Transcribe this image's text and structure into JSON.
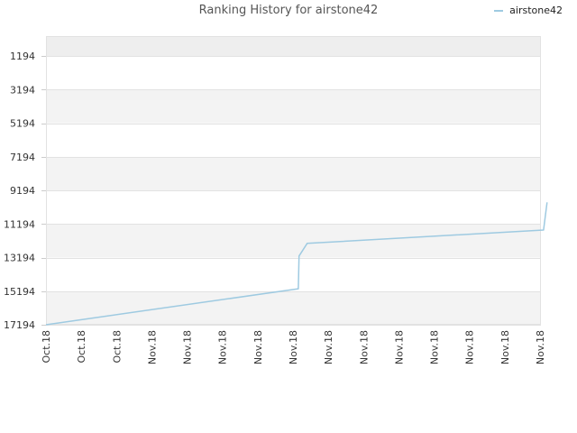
{
  "chart_data": {
    "type": "line",
    "title": "Ranking History for airstone42",
    "legend_position": "top-right",
    "grid": true,
    "y_inverted": true,
    "ylim": [
      17194,
      0
    ],
    "y_ticks": [
      1194,
      3194,
      5194,
      7194,
      9194,
      11194,
      13194,
      15194,
      17194
    ],
    "x_ticks": [
      "Oct.18",
      "Oct.18",
      "Oct.18",
      "Nov.18",
      "Nov.18",
      "Nov.18",
      "Nov.18",
      "Nov.18",
      "Nov.18",
      "Nov.18",
      "Nov.18",
      "Nov.18",
      "Nov.18",
      "Nov.18",
      "Nov.18"
    ],
    "series": [
      {
        "name": "airstone42",
        "color": "#9ecae1",
        "x": [
          0,
          7.15,
          7.17,
          7.4,
          14.1,
          14.2
        ],
        "values": [
          17194,
          15050,
          13100,
          12350,
          11550,
          9900
        ]
      }
    ]
  }
}
